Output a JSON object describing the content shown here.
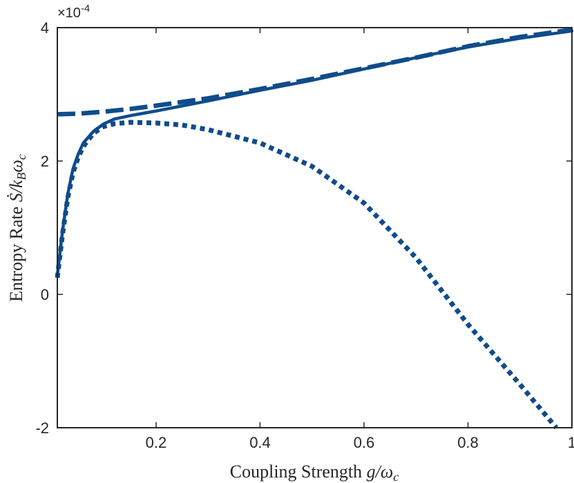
{
  "chart_data": {
    "type": "line",
    "title": "",
    "xlabel_text": "Coupling Strength",
    "xlabel_math": "g/ω",
    "xlabel_sub": "c",
    "ylabel_text": "Entropy Rate",
    "ylabel_math": "Ṡ/k",
    "ylabel_sub1": "B",
    "ylabel_mid": "ω",
    "ylabel_sub2": "c",
    "y_exponent_base": "×10",
    "y_exponent_power": "-4",
    "xlim": [
      0.01,
      1.0
    ],
    "ylim": [
      -2,
      4
    ],
    "x_ticks": [
      0.2,
      0.4,
      0.6,
      0.8,
      1
    ],
    "x_tick_labels": [
      "0.2",
      "0.4",
      "0.6",
      "0.8",
      "1"
    ],
    "y_ticks": [
      -2,
      0,
      2,
      4
    ],
    "y_tick_labels": [
      "-2",
      "0",
      "2",
      "4"
    ],
    "grid": false,
    "line_color": "#0f4c8a",
    "series": [
      {
        "style": "solid",
        "x": [
          0.01,
          0.02,
          0.03,
          0.04,
          0.05,
          0.06,
          0.08,
          0.1,
          0.12,
          0.15,
          0.2,
          0.3,
          0.4,
          0.5,
          0.6,
          0.7,
          0.8,
          0.9,
          1.0
        ],
        "y": [
          0.28,
          0.95,
          1.5,
          1.88,
          2.1,
          2.27,
          2.45,
          2.56,
          2.63,
          2.68,
          2.75,
          2.9,
          3.06,
          3.21,
          3.38,
          3.55,
          3.71,
          3.84,
          3.95
        ]
      },
      {
        "style": "dashed",
        "x": [
          0.01,
          0.05,
          0.1,
          0.15,
          0.2,
          0.3,
          0.4,
          0.5,
          0.6,
          0.7,
          0.8,
          0.9,
          1.0
        ],
        "y": [
          2.7,
          2.71,
          2.74,
          2.78,
          2.83,
          2.94,
          3.08,
          3.23,
          3.39,
          3.55,
          3.72,
          3.86,
          3.97
        ]
      },
      {
        "style": "dotted",
        "x": [
          0.01,
          0.02,
          0.03,
          0.04,
          0.05,
          0.06,
          0.08,
          0.1,
          0.12,
          0.15,
          0.2,
          0.25,
          0.3,
          0.4,
          0.5,
          0.6,
          0.7,
          0.8,
          0.9,
          0.97
        ],
        "y": [
          0.25,
          0.9,
          1.45,
          1.82,
          2.05,
          2.22,
          2.42,
          2.52,
          2.56,
          2.58,
          2.57,
          2.54,
          2.47,
          2.27,
          1.92,
          1.37,
          0.55,
          -0.45,
          -1.35,
          -2.0
        ]
      }
    ]
  }
}
